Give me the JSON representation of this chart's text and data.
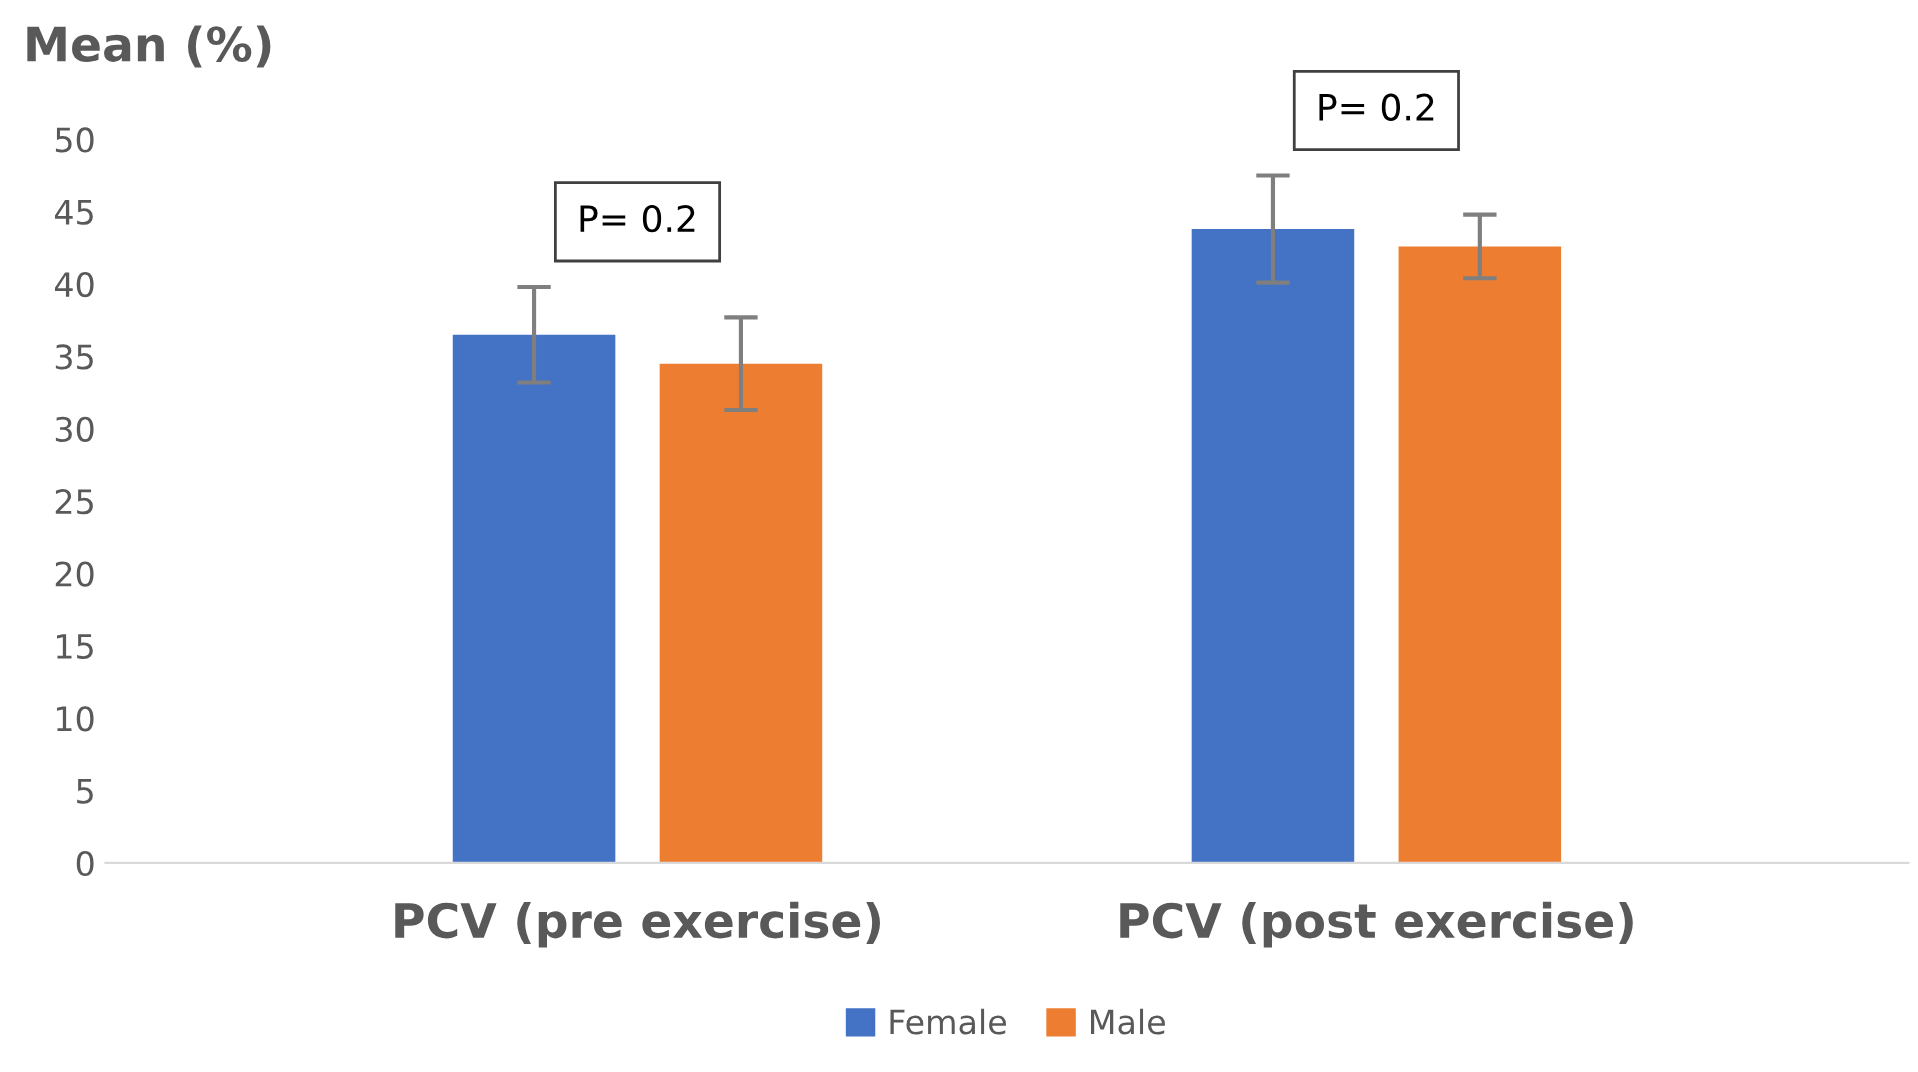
{
  "chart_data": {
    "type": "bar",
    "ylabel": "Mean (%)",
    "categories": [
      "PCV (pre exercise)",
      "PCV (post exercise)"
    ],
    "series": [
      {
        "name": "Female",
        "color": "#4472c4",
        "values": [
          36.5,
          43.8
        ],
        "errors": [
          3.3,
          3.7
        ]
      },
      {
        "name": "Male",
        "color": "#ed7d31",
        "values": [
          34.5,
          42.6
        ],
        "errors": [
          3.2,
          2.2
        ]
      }
    ],
    "ylim": [
      0,
      50
    ],
    "yticks": [
      0,
      5,
      10,
      15,
      20,
      25,
      30,
      35,
      40,
      45,
      50
    ],
    "annotations": [
      "P= 0.2",
      "P= 0.2"
    ],
    "grid": false,
    "legend": "bottom"
  }
}
